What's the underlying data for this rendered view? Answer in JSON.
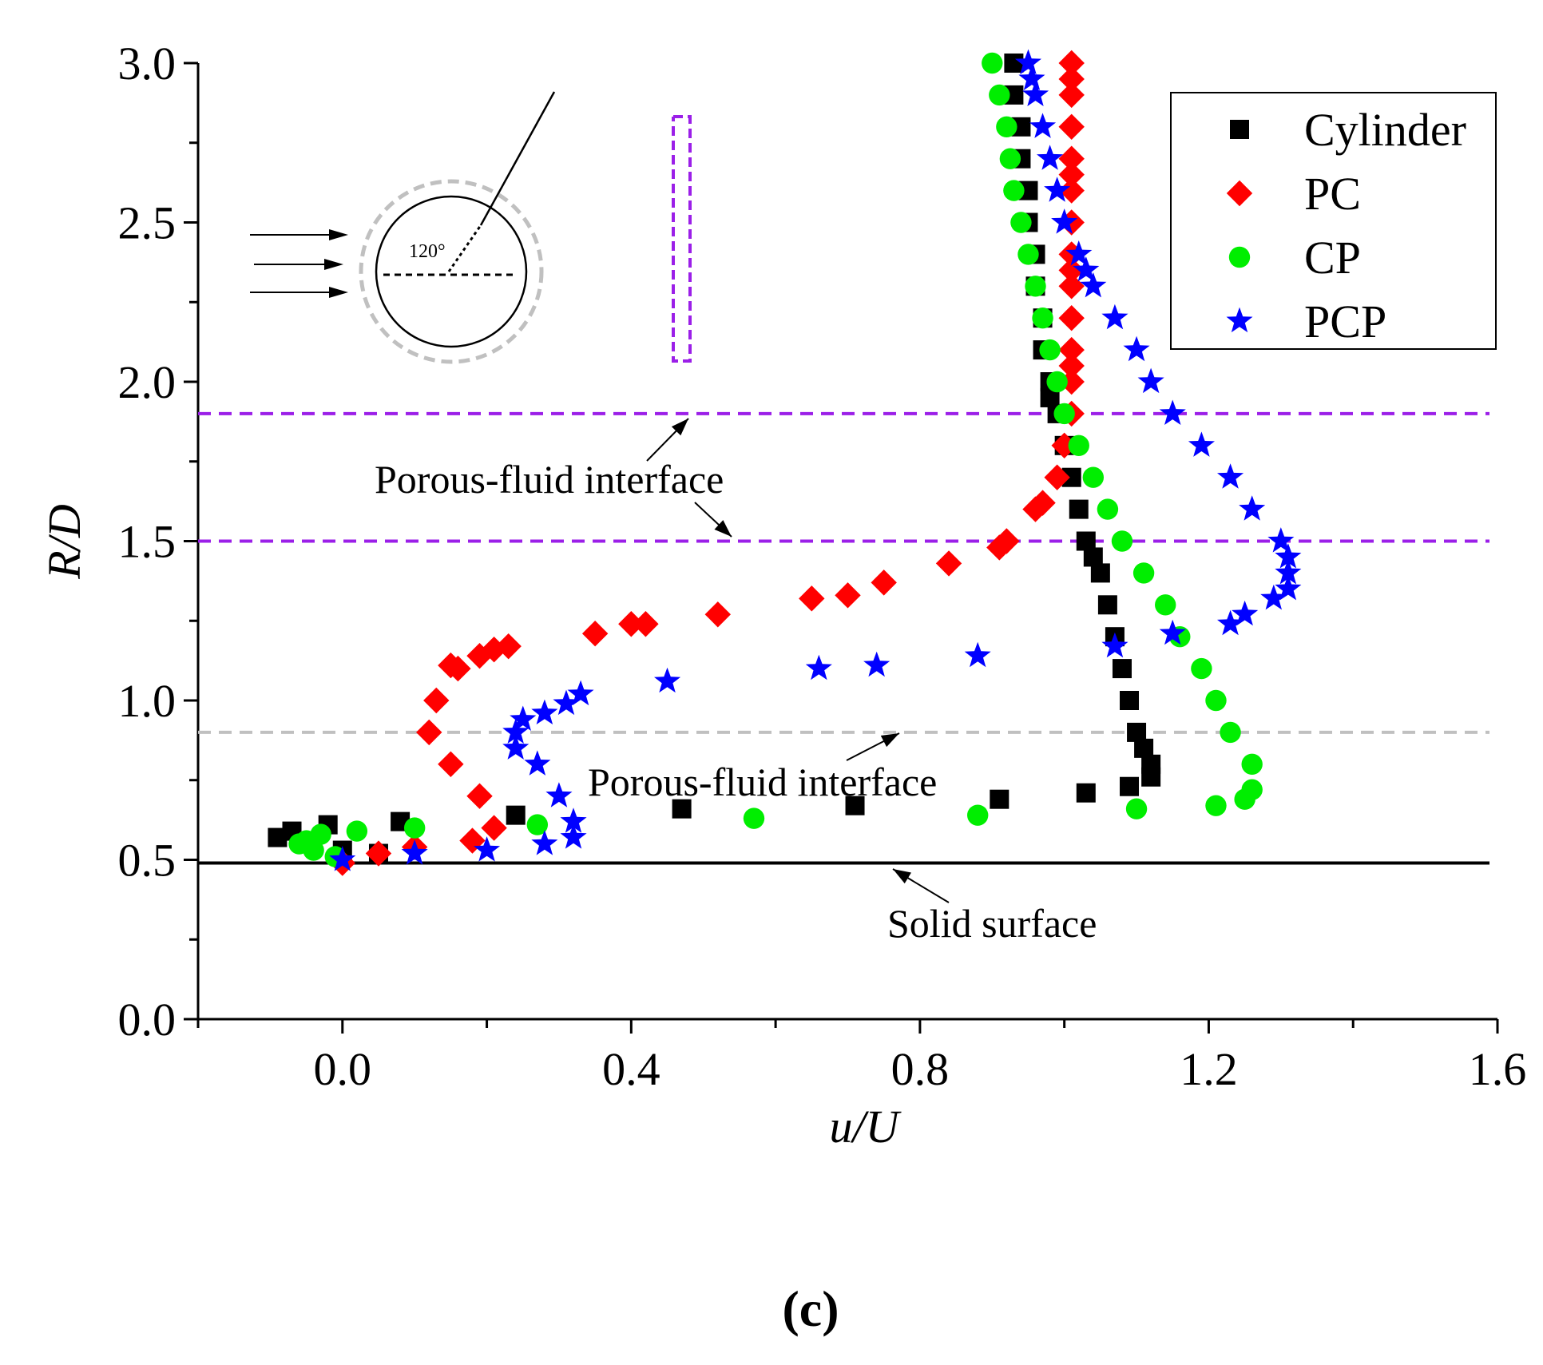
{
  "chart_data": {
    "type": "scatter",
    "title": "",
    "caption": "(c)",
    "xlabel": "u/U",
    "ylabel": "R/D",
    "xlim": [
      -0.2,
      1.6
    ],
    "ylim": [
      0.0,
      3.0
    ],
    "xticks": [
      "0.0",
      "0.4",
      "0.8",
      "1.2",
      "1.6"
    ],
    "xtick_values": [
      0.0,
      0.4,
      0.8,
      1.2,
      1.6
    ],
    "yticks": [
      "0.0",
      "0.5",
      "1.0",
      "1.5",
      "2.0",
      "2.5",
      "3.0"
    ],
    "ytick_values": [
      0.0,
      0.5,
      1.0,
      1.5,
      2.0,
      2.5,
      3.0
    ],
    "grid": false,
    "legend_position": "top-right",
    "series": [
      {
        "name": "Cylinder",
        "marker": "square",
        "color": "#000000",
        "x": [
          0.93,
          0.93,
          0.94,
          0.94,
          0.95,
          0.95,
          0.96,
          0.96,
          0.97,
          0.97,
          0.98,
          0.98,
          0.99,
          1.0,
          1.01,
          1.02,
          1.03,
          1.04,
          1.05,
          1.06,
          1.07,
          1.08,
          1.09,
          1.1,
          1.11,
          1.12,
          1.12,
          1.09,
          1.03,
          0.91,
          0.71,
          0.47,
          0.24,
          0.08,
          -0.02,
          -0.07,
          -0.09,
          -0.05,
          0.0,
          0.05
        ],
        "y": [
          3.0,
          2.9,
          2.8,
          2.7,
          2.6,
          2.5,
          2.4,
          2.3,
          2.2,
          2.1,
          2.0,
          1.95,
          1.9,
          1.8,
          1.7,
          1.6,
          1.5,
          1.45,
          1.4,
          1.3,
          1.2,
          1.1,
          1.0,
          0.9,
          0.85,
          0.8,
          0.76,
          0.73,
          0.71,
          0.69,
          0.67,
          0.66,
          0.64,
          0.62,
          0.61,
          0.59,
          0.57,
          0.55,
          0.53,
          0.52
        ]
      },
      {
        "name": "PC",
        "marker": "diamond",
        "color": "#ff0000",
        "x": [
          1.01,
          1.01,
          1.01,
          1.01,
          1.01,
          1.01,
          1.01,
          1.01,
          1.01,
          1.01,
          1.01,
          1.01,
          1.01,
          1.01,
          1.01,
          1.01,
          1.0,
          0.99,
          0.97,
          0.96,
          0.92,
          0.91,
          0.84,
          0.75,
          0.7,
          0.65,
          0.52,
          0.42,
          0.4,
          0.35,
          0.23,
          0.21,
          0.19,
          0.16,
          0.15,
          0.13,
          0.12,
          0.15,
          0.19,
          0.21,
          0.18,
          0.1,
          0.05,
          0.0
        ],
        "y": [
          3.0,
          2.95,
          2.9,
          2.8,
          2.7,
          2.65,
          2.6,
          2.5,
          2.4,
          2.35,
          2.3,
          2.2,
          2.1,
          2.05,
          2.0,
          1.9,
          1.8,
          1.7,
          1.62,
          1.6,
          1.5,
          1.48,
          1.43,
          1.37,
          1.33,
          1.32,
          1.27,
          1.24,
          1.24,
          1.21,
          1.17,
          1.16,
          1.14,
          1.1,
          1.11,
          1.0,
          0.9,
          0.8,
          0.7,
          0.6,
          0.56,
          0.54,
          0.52,
          0.49
        ]
      },
      {
        "name": "CP",
        "marker": "circle",
        "color": "#00ee00",
        "x": [
          0.9,
          0.91,
          0.92,
          0.925,
          0.93,
          0.94,
          0.95,
          0.96,
          0.97,
          0.98,
          0.99,
          1.0,
          1.02,
          1.04,
          1.06,
          1.08,
          1.11,
          1.14,
          1.16,
          1.19,
          1.21,
          1.23,
          1.26,
          1.26,
          1.25,
          1.21,
          1.1,
          0.88,
          0.57,
          0.27,
          0.1,
          0.02,
          -0.03,
          -0.05,
          -0.06,
          -0.04,
          -0.01
        ],
        "y": [
          3.0,
          2.9,
          2.8,
          2.7,
          2.6,
          2.5,
          2.4,
          2.3,
          2.2,
          2.1,
          2.0,
          1.9,
          1.8,
          1.7,
          1.6,
          1.5,
          1.4,
          1.3,
          1.2,
          1.1,
          1.0,
          0.9,
          0.8,
          0.72,
          0.69,
          0.67,
          0.66,
          0.64,
          0.63,
          0.61,
          0.6,
          0.59,
          0.58,
          0.56,
          0.55,
          0.53,
          0.51
        ]
      },
      {
        "name": "PCP",
        "marker": "star",
        "color": "#0000ff",
        "x": [
          0.95,
          0.955,
          0.96,
          0.97,
          0.98,
          0.99,
          1.0,
          1.02,
          1.03,
          1.04,
          1.07,
          1.1,
          1.12,
          1.15,
          1.19,
          1.23,
          1.26,
          1.3,
          1.31,
          1.31,
          1.31,
          1.29,
          1.25,
          1.23,
          1.15,
          1.07,
          0.88,
          0.74,
          0.66,
          0.45,
          0.33,
          0.31,
          0.28,
          0.25,
          0.24,
          0.24,
          0.27,
          0.3,
          0.32,
          0.32,
          0.28,
          0.2,
          0.1,
          0.0
        ],
        "y": [
          3.0,
          2.95,
          2.9,
          2.8,
          2.7,
          2.6,
          2.5,
          2.4,
          2.35,
          2.3,
          2.2,
          2.1,
          2.0,
          1.9,
          1.8,
          1.7,
          1.6,
          1.5,
          1.45,
          1.4,
          1.35,
          1.32,
          1.27,
          1.24,
          1.21,
          1.17,
          1.14,
          1.11,
          1.1,
          1.06,
          1.02,
          0.99,
          0.96,
          0.94,
          0.9,
          0.85,
          0.8,
          0.7,
          0.62,
          0.57,
          0.55,
          0.53,
          0.52,
          0.5
        ]
      }
    ],
    "reference_lines": [
      {
        "name": "outer-porous-fluid-interface",
        "y": 1.9,
        "color": "#9b1fe8",
        "style": "dashed"
      },
      {
        "name": "inner-porous-fluid-interface",
        "y": 1.5,
        "color": "#9b1fe8",
        "style": "dashed"
      },
      {
        "name": "cp-porous-fluid-interface",
        "y": 0.9,
        "color": "#c0c0c0",
        "style": "dashed"
      },
      {
        "name": "solid-surface",
        "y": 0.49,
        "color": "#000000",
        "style": "solid"
      }
    ],
    "annotations": {
      "interface_upper": "Porous-fluid interface",
      "interface_lower": "Porous-fluid interface",
      "solid_surface": "Solid surface",
      "inset_angle": "120°"
    }
  }
}
